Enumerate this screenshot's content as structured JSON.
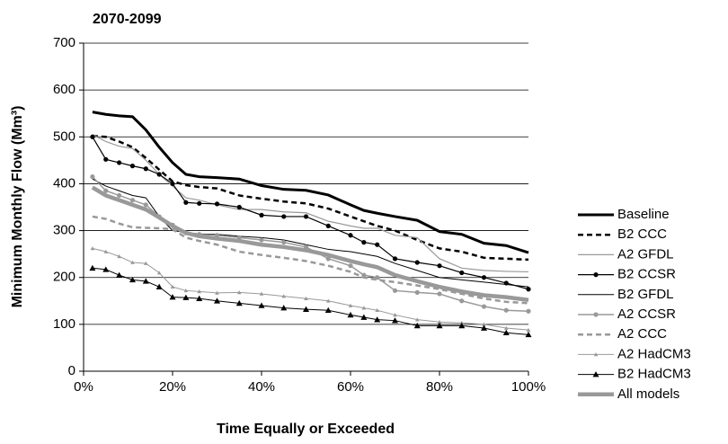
{
  "chart_data": {
    "type": "line",
    "title": "2070-2099",
    "x_label": "Time Equally or Exceeded",
    "y_label": "Minimum Monthly Flow (Mm³)",
    "xlim": [
      0,
      100
    ],
    "ylim": [
      0,
      700
    ],
    "xticks": [
      {
        "value": 0,
        "label": "0%"
      },
      {
        "value": 20,
        "label": "20%"
      },
      {
        "value": 40,
        "label": "40%"
      },
      {
        "value": 60,
        "label": "60%"
      },
      {
        "value": 80,
        "label": "80%"
      },
      {
        "value": 100,
        "label": "100%"
      }
    ],
    "yticks": [
      0,
      100,
      200,
      300,
      400,
      500,
      600,
      700
    ],
    "grid": true,
    "legend": "right",
    "x": [
      2,
      5,
      8,
      11,
      14,
      17,
      20,
      23,
      26,
      30,
      35,
      40,
      45,
      50,
      55,
      60,
      63,
      66,
      70,
      75,
      80,
      85,
      90,
      95,
      100
    ],
    "series": [
      {
        "name": "Baseline",
        "color": "#000000",
        "width": 3,
        "dash": "solid",
        "marker": "none",
        "values": [
          553,
          548,
          545,
          543,
          515,
          478,
          445,
          420,
          415,
          413,
          410,
          396,
          388,
          386,
          376,
          355,
          343,
          337,
          330,
          322,
          298,
          292,
          273,
          268,
          253
        ]
      },
      {
        "name": "B2 CCC",
        "color": "#000000",
        "width": 2.5,
        "dash": "dashed",
        "marker": "none",
        "values": [
          502,
          500,
          490,
          478,
          455,
          430,
          405,
          397,
          393,
          390,
          375,
          368,
          362,
          358,
          347,
          330,
          320,
          310,
          300,
          280,
          262,
          255,
          242,
          240,
          238
        ]
      },
      {
        "name": "A2 GFDL",
        "color": "#999999",
        "width": 1.2,
        "dash": "solid",
        "marker": "none",
        "values": [
          505,
          490,
          480,
          475,
          450,
          420,
          395,
          370,
          365,
          355,
          345,
          345,
          340,
          338,
          320,
          310,
          305,
          305,
          290,
          285,
          240,
          220,
          215,
          213,
          212
        ]
      },
      {
        "name": "B2 CCSR",
        "color": "#000000",
        "width": 1.2,
        "dash": "solid",
        "marker": "circle",
        "values": [
          500,
          452,
          445,
          438,
          432,
          420,
          400,
          360,
          358,
          357,
          350,
          333,
          330,
          330,
          310,
          290,
          275,
          270,
          240,
          232,
          225,
          210,
          200,
          188,
          175
        ]
      },
      {
        "name": "B2 GFDL",
        "color": "#000000",
        "width": 1,
        "dash": "solid",
        "marker": "none",
        "values": [
          410,
          395,
          385,
          375,
          370,
          330,
          300,
          296,
          293,
          292,
          288,
          285,
          280,
          270,
          260,
          255,
          250,
          245,
          230,
          215,
          200,
          195,
          190,
          185,
          180
        ]
      },
      {
        "name": "A2 CCSR",
        "color": "#999999",
        "width": 1.5,
        "dash": "solid",
        "marker": "circle",
        "values": [
          415,
          385,
          375,
          365,
          355,
          330,
          312,
          295,
          292,
          290,
          285,
          280,
          275,
          265,
          240,
          225,
          205,
          200,
          172,
          168,
          165,
          150,
          138,
          130,
          128
        ]
      },
      {
        "name": "A2 CCC",
        "color": "#999999",
        "width": 2.5,
        "dash": "dashed",
        "marker": "none",
        "values": [
          330,
          325,
          315,
          307,
          306,
          305,
          303,
          285,
          278,
          270,
          255,
          248,
          242,
          235,
          225,
          212,
          200,
          195,
          190,
          183,
          175,
          165,
          155,
          148,
          145
        ]
      },
      {
        "name": "A2 HadCM3",
        "color": "#999999",
        "width": 1,
        "dash": "solid",
        "marker": "small-triangle",
        "values": [
          262,
          255,
          245,
          232,
          230,
          210,
          180,
          172,
          170,
          167,
          168,
          165,
          160,
          155,
          150,
          140,
          135,
          130,
          120,
          110,
          105,
          103,
          100,
          92,
          88
        ]
      },
      {
        "name": "B2 HadCM3",
        "color": "#000000",
        "width": 1,
        "dash": "solid",
        "marker": "triangle",
        "values": [
          220,
          217,
          205,
          195,
          192,
          180,
          158,
          157,
          155,
          150,
          145,
          140,
          135,
          132,
          130,
          120,
          115,
          110,
          108,
          97,
          97,
          97,
          92,
          82,
          78
        ]
      },
      {
        "name": "All models",
        "color": "#999999",
        "width": 4.5,
        "dash": "solid",
        "marker": "none",
        "values": [
          392,
          375,
          365,
          355,
          345,
          328,
          310,
          295,
          288,
          283,
          278,
          270,
          265,
          258,
          248,
          235,
          228,
          222,
          205,
          192,
          180,
          170,
          162,
          158,
          152
        ]
      }
    ]
  }
}
